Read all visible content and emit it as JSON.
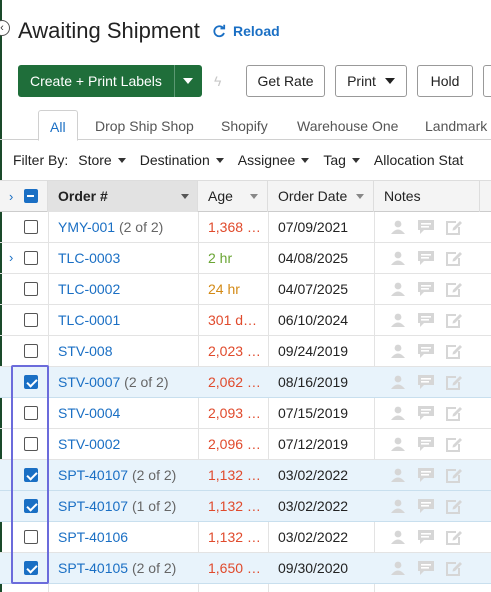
{
  "header": {
    "title": "Awaiting Shipment",
    "reload_label": "Reload"
  },
  "toolbar": {
    "create_label": "Create + Print Labels",
    "get_rate_label": "Get Rate",
    "print_label": "Print",
    "hold_label": "Hold"
  },
  "tabs": [
    "All",
    "Drop Ship Shop",
    "Shopify",
    "Warehouse One",
    "Landmark"
  ],
  "filters": {
    "label": "Filter By:",
    "items": [
      "Store",
      "Destination",
      "Assignee",
      "Tag",
      "Allocation Stat"
    ]
  },
  "columns": {
    "order": "Order #",
    "age": "Age",
    "order_date": "Order Date",
    "notes": "Notes"
  },
  "rows": [
    {
      "order": "YMY-001",
      "part": "(2 of 2)",
      "age": "1,368 …",
      "age_color": "#e04a2c",
      "date": "07/09/2021",
      "checked": false,
      "expandable": false
    },
    {
      "order": "TLC-0003",
      "part": "",
      "age": "2 hr",
      "age_color": "#6aa534",
      "date": "04/08/2025",
      "checked": false,
      "expandable": true
    },
    {
      "order": "TLC-0002",
      "part": "",
      "age": "24 hr",
      "age_color": "#d38a16",
      "date": "04/07/2025",
      "checked": false,
      "expandable": false
    },
    {
      "order": "TLC-0001",
      "part": "",
      "age": "301 d…",
      "age_color": "#e04a2c",
      "date": "06/10/2024",
      "checked": false,
      "expandable": false
    },
    {
      "order": "STV-008",
      "part": "",
      "age": "2,023 …",
      "age_color": "#e04a2c",
      "date": "09/24/2019",
      "checked": false,
      "expandable": false
    },
    {
      "order": "STV-0007",
      "part": "(2 of 2)",
      "age": "2,062 …",
      "age_color": "#e04a2c",
      "date": "08/16/2019",
      "checked": true,
      "expandable": false
    },
    {
      "order": "STV-0004",
      "part": "",
      "age": "2,093 …",
      "age_color": "#e04a2c",
      "date": "07/15/2019",
      "checked": false,
      "expandable": false
    },
    {
      "order": "STV-0002",
      "part": "",
      "age": "2,096 …",
      "age_color": "#e04a2c",
      "date": "07/12/2019",
      "checked": false,
      "expandable": false
    },
    {
      "order": "SPT-40107",
      "part": "(2 of 2)",
      "age": "1,132 …",
      "age_color": "#e04a2c",
      "date": "03/02/2022",
      "checked": true,
      "expandable": false
    },
    {
      "order": "SPT-40107",
      "part": "(1 of 2)",
      "age": "1,132 …",
      "age_color": "#e04a2c",
      "date": "03/02/2022",
      "checked": true,
      "expandable": false
    },
    {
      "order": "SPT-40106",
      "part": "",
      "age": "1,132 …",
      "age_color": "#e04a2c",
      "date": "03/02/2022",
      "checked": false,
      "expandable": false
    },
    {
      "order": "SPT-40105",
      "part": "(2 of 2)",
      "age": "1,650 …",
      "age_color": "#e04a2c",
      "date": "09/30/2020",
      "checked": true,
      "expandable": false
    }
  ],
  "colors": {
    "primary_green": "#1f6e3a",
    "link_blue": "#1a6fc4",
    "selected_row": "#e8f3fb",
    "highlight_box": "#6b6bdb"
  },
  "icons": {
    "reload": "reload-icon",
    "bolt": "bolt-icon",
    "notes": [
      "person-note-icon",
      "comment-icon",
      "edit-note-icon"
    ]
  }
}
